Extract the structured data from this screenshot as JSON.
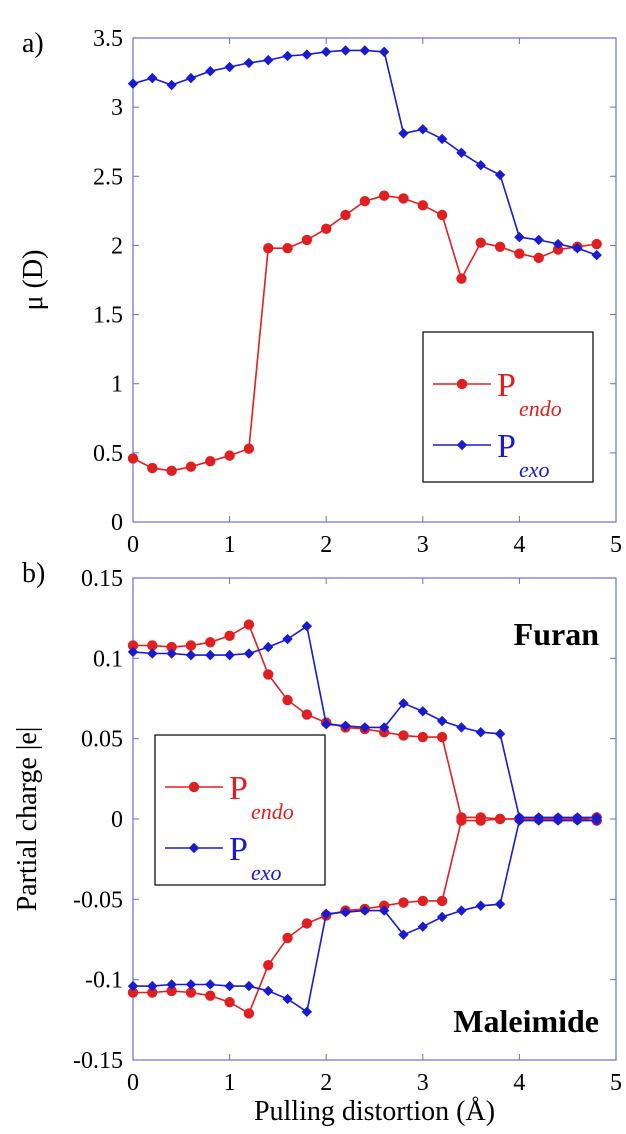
{
  "chart_data": [
    {
      "panel_label": "a)",
      "type": "line",
      "ylabel": "μ (D)",
      "xlabel": "",
      "xlim": [
        0,
        5
      ],
      "ylim": [
        0,
        3.5
      ],
      "xticks": [
        "0",
        "1",
        "2",
        "3",
        "4",
        "5"
      ],
      "yticks": [
        "0",
        "0.5",
        "1",
        "1.5",
        "2",
        "2.5",
        "3",
        "3.5"
      ],
      "legend_position": "lower-right",
      "series": [
        {
          "name_main": "P",
          "name_sub": "endo",
          "color": "#e02020",
          "marker": "circle",
          "lines": [
            {
              "x": [
                0,
                0.2,
                0.4,
                0.6,
                0.8,
                1.0,
                1.2,
                1.4,
                1.6,
                1.8,
                2.0,
                2.2,
                2.4,
                2.6,
                2.8,
                3.0,
                3.2,
                3.4,
                3.6,
                3.8,
                4.0,
                4.2,
                4.4,
                4.6,
                4.8
              ],
              "y": [
                0.46,
                0.39,
                0.37,
                0.4,
                0.44,
                0.48,
                0.53,
                1.98,
                1.98,
                2.04,
                2.12,
                2.22,
                2.32,
                2.36,
                2.34,
                2.29,
                2.22,
                1.76,
                2.02,
                1.99,
                1.94,
                1.91,
                1.97,
                1.99,
                2.01
              ]
            }
          ]
        },
        {
          "name_main": "P",
          "name_sub": "exo",
          "color": "#1a1ad0",
          "marker": "diamond",
          "lines": [
            {
              "x": [
                0,
                0.2,
                0.4,
                0.6,
                0.8,
                1.0,
                1.2,
                1.4,
                1.6,
                1.8,
                2.0,
                2.2,
                2.4,
                2.6,
                2.8,
                3.0,
                3.2,
                3.4,
                3.6,
                3.8,
                4.0,
                4.2,
                4.4,
                4.6,
                4.8
              ],
              "y": [
                3.17,
                3.21,
                3.16,
                3.21,
                3.26,
                3.29,
                3.32,
                3.34,
                3.37,
                3.38,
                3.4,
                3.41,
                3.41,
                3.4,
                2.81,
                2.84,
                2.77,
                2.67,
                2.58,
                2.51,
                2.06,
                2.04,
                2.01,
                1.98,
                1.93
              ]
            }
          ]
        }
      ]
    },
    {
      "panel_label": "b)",
      "type": "line",
      "ylabel": "Partial charge |e|",
      "xlabel": "Pulling distortion (Å)",
      "xlim": [
        0,
        5
      ],
      "ylim": [
        -0.15,
        0.15
      ],
      "xticks": [
        "0",
        "1",
        "2",
        "3",
        "4",
        "5"
      ],
      "yticks": [
        "-0.15",
        "-0.1",
        "-0.05",
        "0",
        "0.05",
        "0.1",
        "0.15"
      ],
      "legend_position": "center-left",
      "annotations": [
        "Furan",
        "Maleimide"
      ],
      "series": [
        {
          "name_main": "P",
          "name_sub": "endo",
          "color": "#e02020",
          "marker": "circle",
          "lines": [
            {
              "x": [
                0,
                0.2,
                0.4,
                0.6,
                0.8,
                1.0,
                1.2,
                1.4,
                1.6,
                1.8,
                2.0,
                2.2,
                2.4,
                2.6,
                2.8,
                3.0,
                3.2,
                3.4,
                3.6,
                3.8,
                4.0,
                4.2,
                4.4,
                4.6,
                4.8
              ],
              "y": [
                0.108,
                0.108,
                0.107,
                0.108,
                0.11,
                0.114,
                0.121,
                0.09,
                0.074,
                0.065,
                0.06,
                0.057,
                0.056,
                0.054,
                0.052,
                0.051,
                0.051,
                0.001,
                0.001,
                0.0,
                0.0,
                0.0,
                0.0,
                0.0,
                0.001
              ]
            },
            {
              "x": [
                0,
                0.2,
                0.4,
                0.6,
                0.8,
                1.0,
                1.2,
                1.4,
                1.6,
                1.8,
                2.0,
                2.2,
                2.4,
                2.6,
                2.8,
                3.0,
                3.2,
                3.4,
                3.6,
                3.8,
                4.0,
                4.2,
                4.4,
                4.6,
                4.8
              ],
              "y": [
                -0.108,
                -0.108,
                -0.107,
                -0.108,
                -0.11,
                -0.114,
                -0.121,
                -0.091,
                -0.074,
                -0.065,
                -0.06,
                -0.057,
                -0.056,
                -0.054,
                -0.052,
                -0.051,
                -0.051,
                -0.001,
                -0.001,
                0.0,
                0.0,
                0.0,
                0.0,
                0.0,
                -0.001
              ]
            }
          ]
        },
        {
          "name_main": "P",
          "name_sub": "exo",
          "color": "#1a1ad0",
          "marker": "diamond",
          "lines": [
            {
              "x": [
                0,
                0.2,
                0.4,
                0.6,
                0.8,
                1.0,
                1.2,
                1.4,
                1.6,
                1.8,
                2.0,
                2.2,
                2.4,
                2.6,
                2.8,
                3.0,
                3.2,
                3.4,
                3.6,
                3.8,
                4.0,
                4.2,
                4.4,
                4.6,
                4.8
              ],
              "y": [
                0.104,
                0.103,
                0.103,
                0.102,
                0.102,
                0.102,
                0.103,
                0.107,
                0.112,
                0.12,
                0.059,
                0.058,
                0.057,
                0.057,
                0.072,
                0.067,
                0.061,
                0.057,
                0.054,
                0.053,
                0.001,
                0.001,
                0.001,
                0.001,
                0.001
              ]
            },
            {
              "x": [
                0,
                0.2,
                0.4,
                0.6,
                0.8,
                1.0,
                1.2,
                1.4,
                1.6,
                1.8,
                2.0,
                2.2,
                2.4,
                2.6,
                2.8,
                3.0,
                3.2,
                3.4,
                3.6,
                3.8,
                4.0,
                4.2,
                4.4,
                4.6,
                4.8
              ],
              "y": [
                -0.104,
                -0.104,
                -0.103,
                -0.103,
                -0.103,
                -0.104,
                -0.104,
                -0.107,
                -0.112,
                -0.12,
                -0.059,
                -0.058,
                -0.057,
                -0.057,
                -0.072,
                -0.067,
                -0.061,
                -0.057,
                -0.054,
                -0.053,
                -0.001,
                -0.001,
                -0.001,
                -0.001,
                -0.001
              ]
            }
          ]
        }
      ]
    }
  ]
}
